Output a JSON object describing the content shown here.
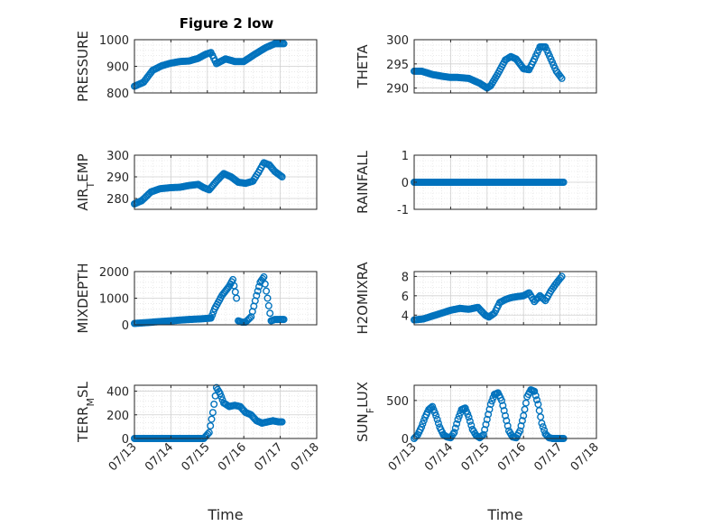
{
  "figure": {
    "title": "Figure 2 low"
  },
  "colors": {
    "marker": "#0072BD",
    "axis": "#262626",
    "grid": "#d0d0d0"
  },
  "chart_data": [
    {
      "type": "scatter",
      "title": "Figure 2 low",
      "ylabel": "PRESSURE",
      "xlabel": "",
      "ylim": [
        800,
        1000
      ],
      "yticks": [
        "800",
        "900",
        "1000"
      ],
      "xlim": [
        "07/13",
        "07/18"
      ],
      "xticks": [
        "07/13",
        "07/14",
        "07/15",
        "07/16",
        "07/17",
        "07/18"
      ],
      "grid": true,
      "x": [
        0.0,
        0.25,
        0.5,
        0.75,
        1.0,
        1.25,
        1.5,
        1.75,
        1.95,
        2.1,
        2.25,
        2.5,
        2.75,
        3.0,
        3.3,
        3.6,
        3.85,
        4.1
      ],
      "y": [
        825,
        840,
        885,
        902,
        912,
        918,
        920,
        930,
        945,
        952,
        910,
        928,
        918,
        918,
        945,
        970,
        985,
        985
      ]
    },
    {
      "type": "scatter",
      "ylabel": "THETA",
      "xlabel": "",
      "ylim": [
        289,
        300
      ],
      "yticks": [
        "290",
        "295",
        "300"
      ],
      "xlim": [
        "07/13",
        "07/18"
      ],
      "xticks": [
        "07/13",
        "07/14",
        "07/15",
        "07/16",
        "07/17",
        "07/18"
      ],
      "grid": true,
      "x": [
        0.0,
        0.2,
        0.5,
        0.8,
        1.0,
        1.2,
        1.5,
        1.8,
        2.0,
        2.1,
        2.3,
        2.5,
        2.65,
        2.8,
        3.0,
        3.15,
        3.3,
        3.45,
        3.6,
        3.75,
        3.9,
        4.05
      ],
      "y": [
        293.5,
        293.5,
        292.8,
        292.4,
        292.2,
        292.2,
        292.0,
        291.0,
        290.0,
        290.5,
        293.0,
        295.8,
        296.5,
        296.0,
        294.0,
        293.8,
        296.0,
        298.5,
        298.5,
        296.0,
        293.5,
        292.0
      ]
    },
    {
      "type": "scatter",
      "ylabel": "AIR_TEMP",
      "xlabel": "",
      "ylim": [
        275,
        300
      ],
      "yticks": [
        "280",
        "290",
        "300"
      ],
      "xlim": [
        "07/13",
        "07/18"
      ],
      "xticks": [
        "07/13",
        "07/14",
        "07/15",
        "07/16",
        "07/17",
        "07/18"
      ],
      "grid": true,
      "x": [
        0.0,
        0.2,
        0.45,
        0.7,
        1.0,
        1.25,
        1.5,
        1.75,
        1.9,
        2.05,
        2.25,
        2.45,
        2.65,
        2.85,
        3.05,
        3.25,
        3.4,
        3.55,
        3.7,
        3.85,
        4.05
      ],
      "y": [
        277.5,
        279.0,
        283.0,
        284.5,
        285.0,
        285.2,
        286.0,
        286.5,
        285.0,
        284.0,
        288.0,
        291.5,
        290.0,
        287.5,
        287.0,
        288.0,
        292.0,
        296.5,
        295.5,
        292.5,
        290.0
      ]
    },
    {
      "type": "scatter",
      "ylabel": "RAINFALL",
      "xlabel": "",
      "ylim": [
        -1,
        1
      ],
      "yticks": [
        "-1",
        "0",
        "1"
      ],
      "xlim": [
        "07/13",
        "07/18"
      ],
      "xticks": [
        "07/13",
        "07/14",
        "07/15",
        "07/16",
        "07/17",
        "07/18"
      ],
      "grid": true,
      "x": [
        0.0,
        4.1
      ],
      "y": [
        0,
        0
      ]
    },
    {
      "type": "scatter",
      "ylabel": "MIXDEPTH",
      "xlabel": "",
      "ylim": [
        0,
        2000
      ],
      "yticks": [
        "0",
        "1000",
        "2000"
      ],
      "xlim": [
        "07/13",
        "07/18"
      ],
      "xticks": [
        "07/13",
        "07/14",
        "07/15",
        "07/16",
        "07/17",
        "07/18"
      ],
      "grid": true,
      "x": [
        0.0,
        0.5,
        1.0,
        1.5,
        1.8,
        2.1,
        2.2,
        2.4,
        2.6,
        2.7,
        2.8,
        2.85,
        2.95,
        3.05,
        3.2,
        3.35,
        3.45,
        3.55,
        3.65,
        3.75,
        3.85,
        4.0,
        4.1
      ],
      "y": [
        50,
        100,
        150,
        200,
        220,
        250,
        600,
        1100,
        1450,
        1700,
        1000,
        150,
        100,
        100,
        300,
        1100,
        1600,
        1800,
        1000,
        150,
        200,
        200,
        200
      ]
    },
    {
      "type": "scatter",
      "ylabel": "H2OMIXRA",
      "xlabel": "",
      "ylim": [
        3,
        8.5
      ],
      "yticks": [
        "4",
        "6",
        "8"
      ],
      "xlim": [
        "07/13",
        "07/18"
      ],
      "xticks": [
        "07/13",
        "07/14",
        "07/15",
        "07/16",
        "07/17",
        "07/18"
      ],
      "grid": true,
      "x": [
        0.0,
        0.25,
        0.5,
        0.75,
        1.0,
        1.25,
        1.5,
        1.75,
        1.95,
        2.05,
        2.2,
        2.35,
        2.5,
        2.65,
        2.8,
        3.0,
        3.15,
        3.3,
        3.45,
        3.6,
        3.75,
        3.9,
        4.05
      ],
      "y": [
        3.5,
        3.6,
        3.9,
        4.2,
        4.5,
        4.7,
        4.6,
        4.8,
        4.0,
        3.8,
        4.2,
        5.3,
        5.6,
        5.8,
        5.9,
        6.0,
        6.3,
        5.4,
        6.0,
        5.5,
        6.5,
        7.3,
        8.0
      ]
    },
    {
      "type": "scatter",
      "ylabel": "TERR_MSL",
      "xlabel": "Time",
      "ylim": [
        0,
        450
      ],
      "yticks": [
        "0",
        "200",
        "400"
      ],
      "xlim": [
        "07/13",
        "07/18"
      ],
      "xticks": [
        "07/13",
        "07/14",
        "07/15",
        "07/16",
        "07/17",
        "07/18"
      ],
      "grid": true,
      "x": [
        0.0,
        0.5,
        1.0,
        1.5,
        1.9,
        2.05,
        2.15,
        2.25,
        2.35,
        2.45,
        2.6,
        2.75,
        2.9,
        3.05,
        3.2,
        3.35,
        3.5,
        3.65,
        3.8,
        3.95,
        4.05
      ],
      "y": [
        0,
        0,
        0,
        0,
        0,
        50,
        220,
        430,
        380,
        300,
        270,
        280,
        270,
        220,
        200,
        150,
        130,
        140,
        150,
        140,
        140
      ]
    },
    {
      "type": "scatter",
      "ylabel": "SUN_FLUX",
      "xlabel": "Time",
      "ylim": [
        0,
        700
      ],
      "yticks": [
        "0",
        "500"
      ],
      "xlim": [
        "07/13",
        "07/18"
      ],
      "xticks": [
        "07/13",
        "07/14",
        "07/15",
        "07/16",
        "07/17",
        "07/18"
      ],
      "grid": true,
      "x": [
        0.0,
        0.1,
        0.2,
        0.3,
        0.4,
        0.5,
        0.6,
        0.7,
        0.8,
        0.9,
        1.0,
        1.1,
        1.2,
        1.3,
        1.4,
        1.5,
        1.6,
        1.7,
        1.8,
        1.9,
        2.0,
        2.1,
        2.2,
        2.3,
        2.4,
        2.5,
        2.6,
        2.7,
        2.8,
        2.9,
        3.0,
        3.1,
        3.2,
        3.3,
        3.4,
        3.5,
        3.6,
        3.7,
        3.8,
        3.9,
        4.0,
        4.1
      ],
      "y": [
        0,
        50,
        150,
        280,
        380,
        420,
        300,
        150,
        50,
        20,
        10,
        80,
        250,
        380,
        400,
        280,
        120,
        40,
        10,
        50,
        250,
        450,
        580,
        600,
        500,
        300,
        100,
        20,
        10,
        100,
        300,
        550,
        640,
        620,
        450,
        200,
        60,
        10,
        0,
        0,
        0,
        0
      ]
    }
  ]
}
